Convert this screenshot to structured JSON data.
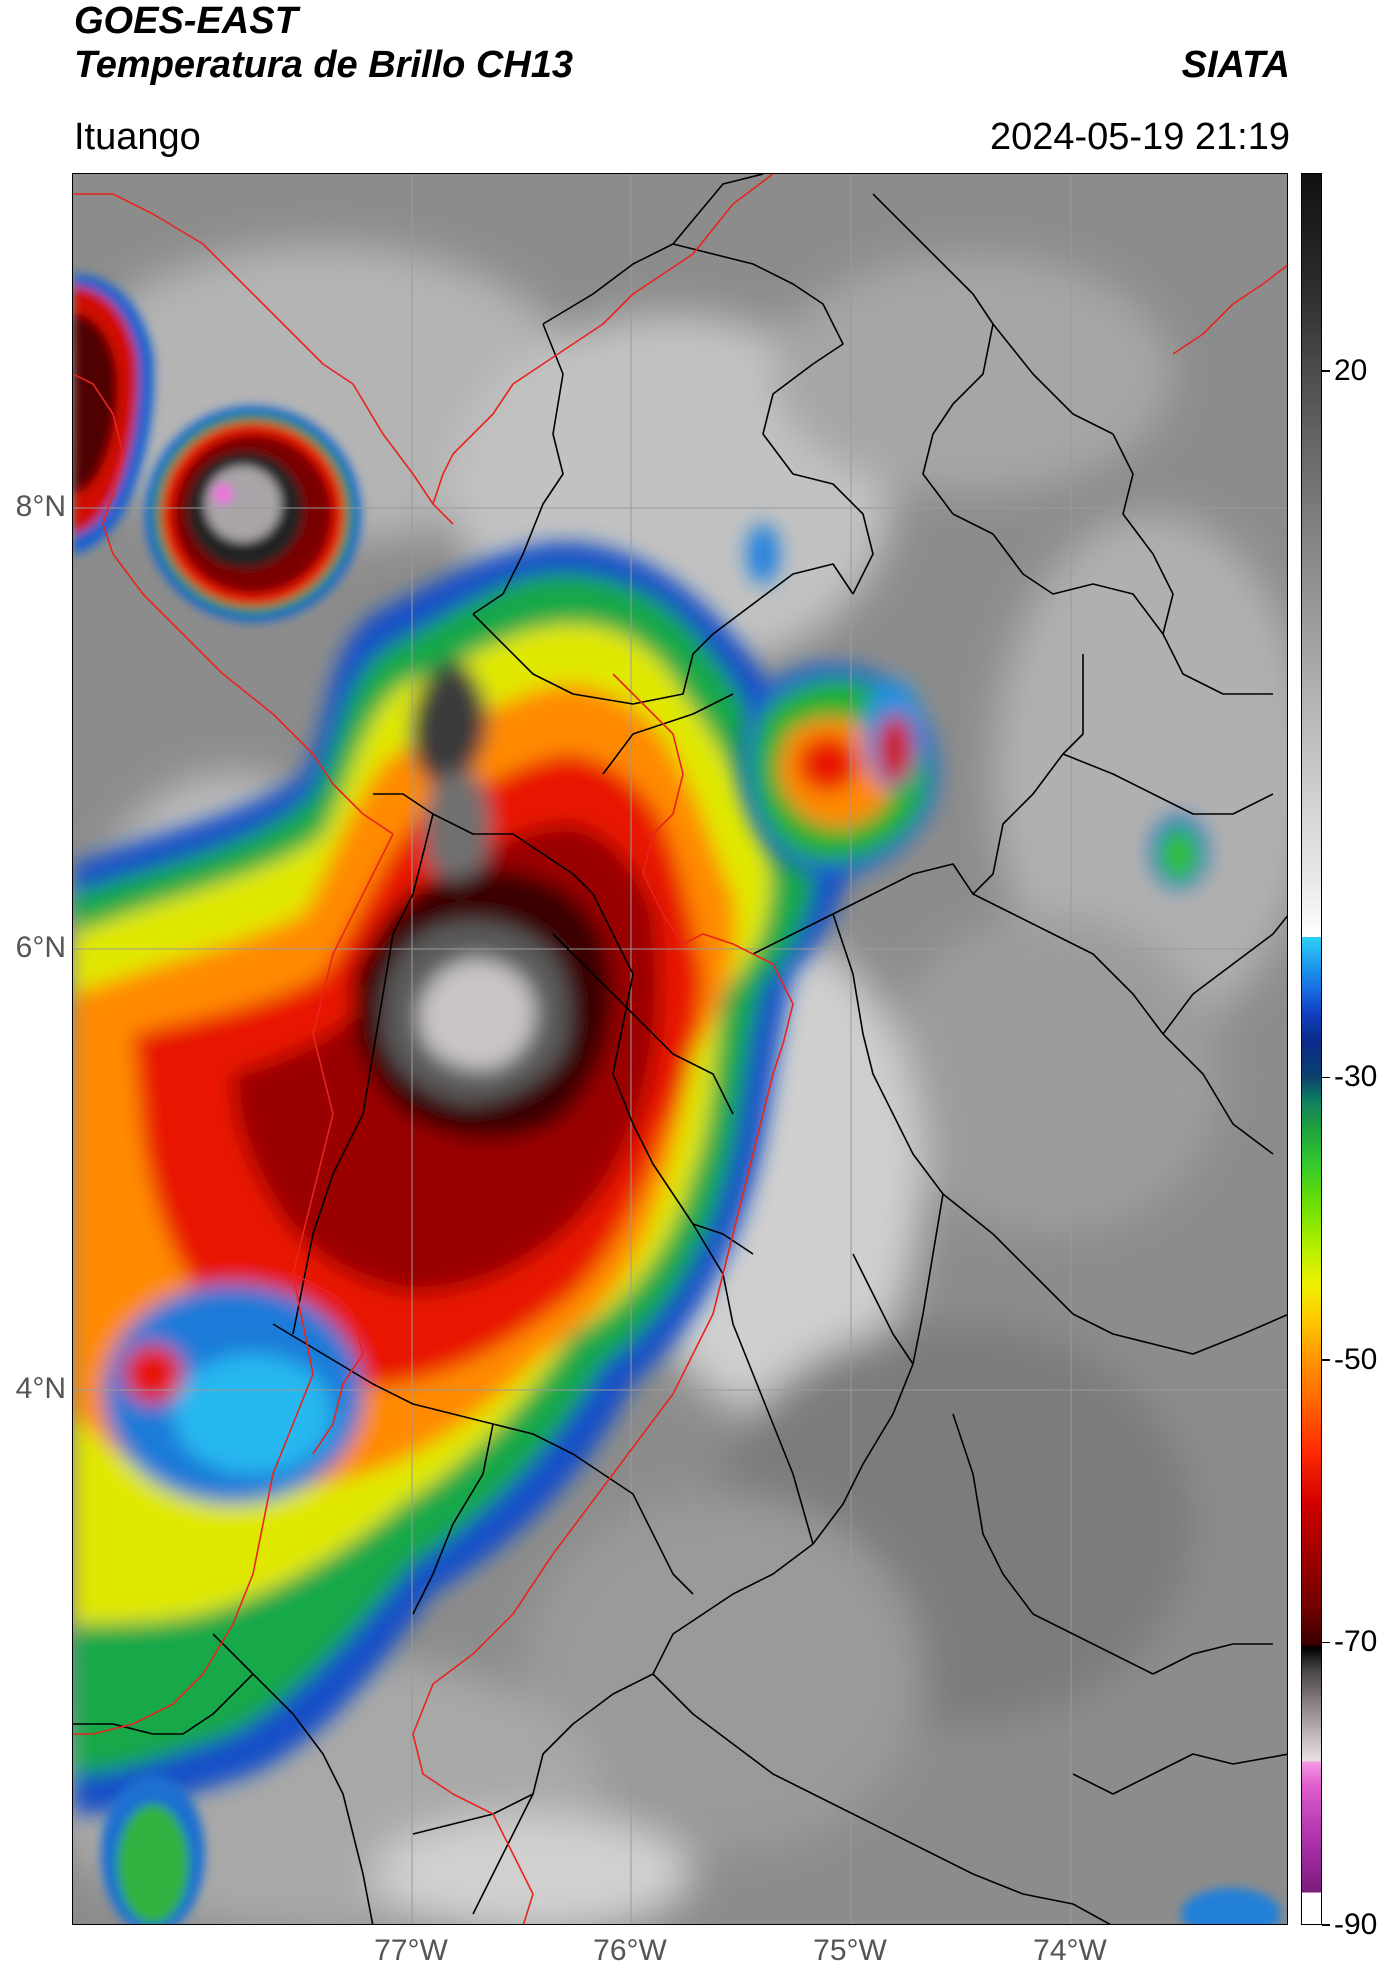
{
  "header": {
    "satellite": "GOES-EAST",
    "product": "Temperatura de Brillo CH13",
    "organization": "SIATA",
    "location": "Ituango",
    "datetime": "2024-05-19 21:19"
  },
  "axes": {
    "lat_labels": [
      {
        "text": "8°N",
        "value": 8
      },
      {
        "text": "6°N",
        "value": 6
      },
      {
        "text": "4°N",
        "value": 4
      }
    ],
    "lon_labels": [
      {
        "text": "77°W",
        "value": -77
      },
      {
        "text": "76°W",
        "value": -76
      },
      {
        "text": "75°W",
        "value": -75
      },
      {
        "text": "74°W",
        "value": -74
      }
    ],
    "lat_range": [
      1.58,
      9.52
    ],
    "lon_range": [
      -78.55,
      -73.01
    ]
  },
  "colorbar": {
    "min": -90,
    "max": 34,
    "ticks": [
      {
        "text": "20",
        "value": 20
      },
      {
        "text": "-30",
        "value": -30
      },
      {
        "text": "-50",
        "value": -50
      },
      {
        "text": "-70",
        "value": -70
      },
      {
        "text": "-90",
        "value": -90
      }
    ]
  },
  "colors": {
    "political_boundary": "#000000",
    "coastline_boundary": "#e8241e",
    "gridline": "#9a9a9a"
  }
}
